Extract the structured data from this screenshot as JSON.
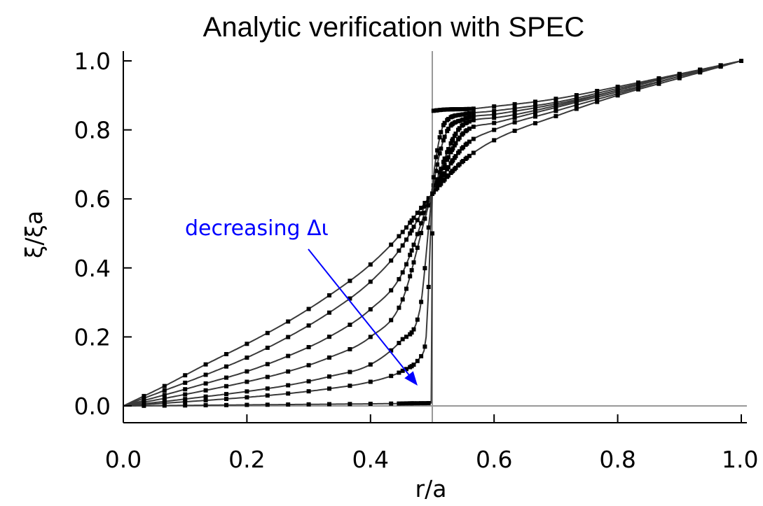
{
  "chart_data": {
    "type": "line",
    "title": "Analytic verification with SPEC",
    "xlabel": "r/a",
    "ylabel": "ξ/ξa",
    "xlim": [
      0,
      1
    ],
    "ylim": [
      0,
      1
    ],
    "xticks": [
      "0.0",
      "0.2",
      "0.4",
      "0.6",
      "0.8",
      "1.0"
    ],
    "yticks": [
      "0.0",
      "0.2",
      "0.4",
      "0.6",
      "0.8",
      "1.0"
    ],
    "grid": false,
    "legend": "none",
    "reference_lines": {
      "vertical_x": 0.5,
      "horizontal_y": 0.0,
      "color": "#999999"
    },
    "annotation": {
      "text": "decreasing Δι",
      "color": "#0000ff"
    },
    "series": [
      {
        "x": [
          0,
          0.067,
          0.133,
          0.2,
          0.267,
          0.333,
          0.4,
          0.45,
          0.5,
          0.55,
          0.6,
          0.7,
          0.8,
          0.9,
          1.0
        ],
        "values": [
          0,
          0.058,
          0.12,
          0.18,
          0.245,
          0.32,
          0.41,
          0.5,
          0.615,
          0.71,
          0.77,
          0.84,
          0.9,
          0.95,
          1.0
        ]
      },
      {
        "x": [
          0,
          0.067,
          0.133,
          0.2,
          0.267,
          0.333,
          0.4,
          0.45,
          0.5,
          0.55,
          0.6,
          0.7,
          0.8,
          0.9,
          1.0
        ],
        "values": [
          0,
          0.045,
          0.09,
          0.14,
          0.2,
          0.27,
          0.36,
          0.46,
          0.615,
          0.75,
          0.8,
          0.855,
          0.905,
          0.955,
          1.0
        ]
      },
      {
        "x": [
          0,
          0.067,
          0.133,
          0.2,
          0.267,
          0.333,
          0.4,
          0.45,
          0.5,
          0.55,
          0.6,
          0.7,
          0.8,
          0.9,
          1.0
        ],
        "values": [
          0,
          0.032,
          0.065,
          0.1,
          0.145,
          0.2,
          0.28,
          0.38,
          0.615,
          0.79,
          0.82,
          0.865,
          0.91,
          0.955,
          1.0
        ]
      },
      {
        "x": [
          0,
          0.067,
          0.133,
          0.2,
          0.267,
          0.333,
          0.4,
          0.45,
          0.5,
          0.55,
          0.6,
          0.7,
          0.8,
          0.9,
          1.0
        ],
        "values": [
          0,
          0.022,
          0.045,
          0.07,
          0.1,
          0.14,
          0.2,
          0.3,
          0.615,
          0.815,
          0.835,
          0.87,
          0.915,
          0.96,
          1.0
        ]
      },
      {
        "x": [
          0,
          0.067,
          0.133,
          0.2,
          0.267,
          0.333,
          0.4,
          0.45,
          0.48,
          0.5,
          0.52,
          0.55,
          0.6,
          0.7,
          0.8,
          0.9,
          1.0
        ],
        "values": [
          0,
          0.013,
          0.027,
          0.042,
          0.06,
          0.085,
          0.12,
          0.19,
          0.28,
          0.615,
          0.78,
          0.83,
          0.845,
          0.875,
          0.915,
          0.96,
          1.0
        ]
      },
      {
        "x": [
          0,
          0.067,
          0.133,
          0.2,
          0.267,
          0.333,
          0.4,
          0.45,
          0.48,
          0.49,
          0.5,
          0.51,
          0.52,
          0.55,
          0.6,
          0.7,
          0.8,
          0.9,
          1.0
        ],
        "values": [
          0,
          0.008,
          0.016,
          0.025,
          0.036,
          0.05,
          0.07,
          0.1,
          0.14,
          0.2,
          0.615,
          0.76,
          0.82,
          0.845,
          0.855,
          0.88,
          0.92,
          0.96,
          1.0
        ]
      },
      {
        "x": [
          0,
          0.067,
          0.133,
          0.2,
          0.267,
          0.333,
          0.4,
          0.45,
          0.49,
          0.499,
          0.5
        ],
        "values": [
          0,
          0.001,
          0.002,
          0.003,
          0.004,
          0.005,
          0.006,
          0.007,
          0.008,
          0.009,
          0.5
        ]
      },
      {
        "x": [
          0.5,
          0.501,
          0.55,
          0.6,
          0.7,
          0.8,
          0.9,
          1.0
        ],
        "values": [
          0.85,
          0.855,
          0.86,
          0.868,
          0.89,
          0.925,
          0.962,
          1.0
        ]
      }
    ]
  }
}
